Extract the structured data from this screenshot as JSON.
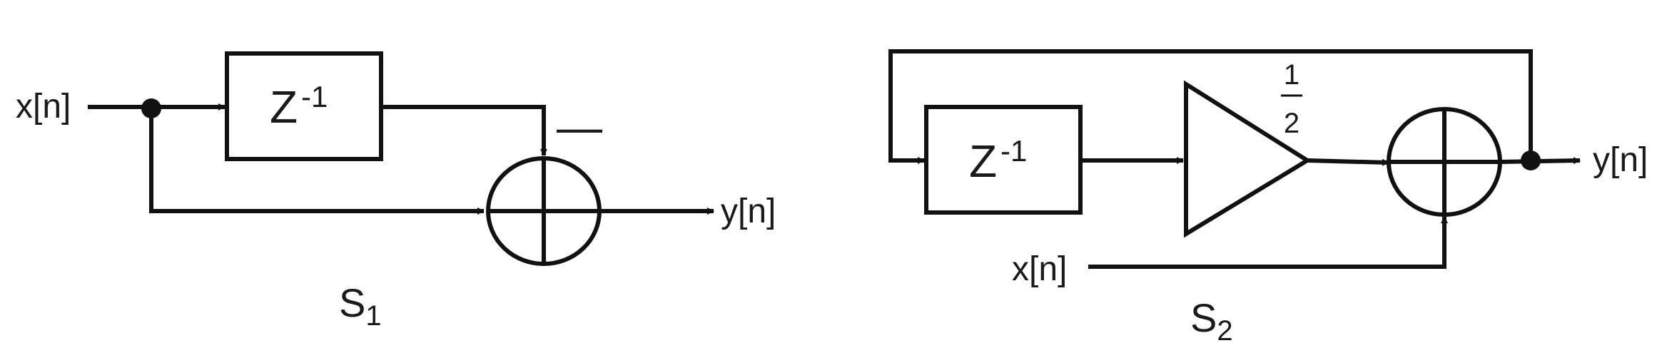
{
  "s1": {
    "input_label": "x[n]",
    "delay_base": "Z",
    "delay_exp": "-1",
    "minus_sign": "—",
    "output_label": "y[n]",
    "system_letter": "S",
    "system_index": "1"
  },
  "s2": {
    "gain_numerator": "1",
    "gain_denominator": "2",
    "delay_base": "Z",
    "delay_exp": "-1",
    "input_label": "x[n]",
    "output_label": "y[n]",
    "system_letter": "S",
    "system_index": "2"
  }
}
